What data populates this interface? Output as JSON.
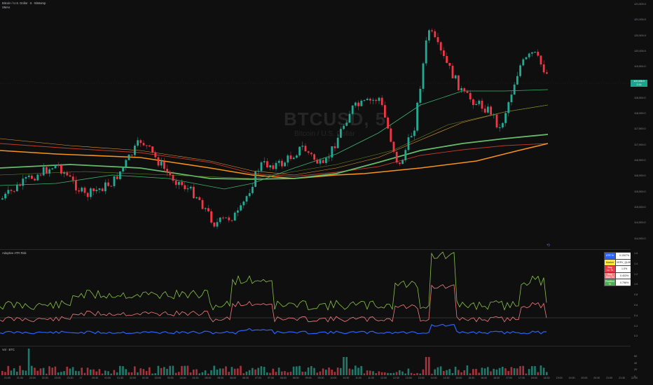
{
  "header": {
    "symbol_line": "Bitcoin / U.S. Dollar · 5 · Bitstamp",
    "sub_line": "SMAs"
  },
  "watermark": {
    "ticker": "BTCUSD, 5",
    "name": "Bitcoin / U.S. Dollar"
  },
  "price_axis": [
    "121,500.0",
    "121,000.0",
    "120,500.0",
    "120,000.0",
    "119,500.0",
    "119,000.0",
    "118,500.0",
    "118,000.0",
    "117,500.0",
    "117,000.0",
    "116,500.0",
    "116,000.0",
    "115,500.0",
    "115,000.0",
    "114,500.0",
    "114,000.0"
  ],
  "price_tag": {
    "value": "119,338.0",
    "time": "2:14"
  },
  "indicator_pane": {
    "title": "Adaptive ATR Risk",
    "axis": [
      "1.6",
      "1.4",
      "1.2",
      "1.0",
      "0.8",
      "0.6",
      "0.4",
      "0.2",
      "0.0"
    ],
    "table": [
      {
        "key": "ATR %",
        "value": "0.1007%",
        "color": "#2962ff"
      },
      {
        "key": "Market",
        "value": "VERY_QUIET",
        "color": "#ffeb3b"
      },
      {
        "key": "Stop Lo. %",
        "value": "1.0%",
        "color": "#f23645"
      },
      {
        "key": "Stop Dist. %",
        "value": "0.403%",
        "color": "#f77c80"
      },
      {
        "key": "Position %",
        "value": "0.756%",
        "color": "#4caf50"
      }
    ]
  },
  "volume_pane": {
    "title": "Vol · BTC",
    "axis": [
      "60",
      "40",
      "20",
      "0"
    ]
  },
  "time_axis": [
    "21:00",
    "21:30",
    "22:00",
    "22:30",
    "23:00",
    "23:30",
    "17",
    "00:30",
    "01:00",
    "01:30",
    "02:00",
    "02:30",
    "03:00",
    "03:30",
    "04:00",
    "04:30",
    "05:00",
    "05:30",
    "06:00",
    "06:30",
    "07:00",
    "07:30",
    "08:00",
    "08:30",
    "09:00",
    "09:30",
    "10:00",
    "10:30",
    "11:00",
    "11:30",
    "12:00",
    "12:30",
    "13:00",
    "13:30",
    "14:00",
    "14:30",
    "15:00",
    "15:30",
    "16:00",
    "16:30",
    "17:00",
    "17:30",
    "18:00",
    "18:30",
    "19:00",
    "19:30",
    "20:00",
    "20:30",
    "21:00",
    "21:30",
    "22:00"
  ],
  "colors": {
    "up": "#22ab94",
    "down": "#f23645",
    "ema_orange": "#f7931a",
    "ema_green": "#66bb6a",
    "atr_blue": "#2962ff",
    "stop_red": "#f77c80",
    "pos_green": "#8bc34a"
  }
}
